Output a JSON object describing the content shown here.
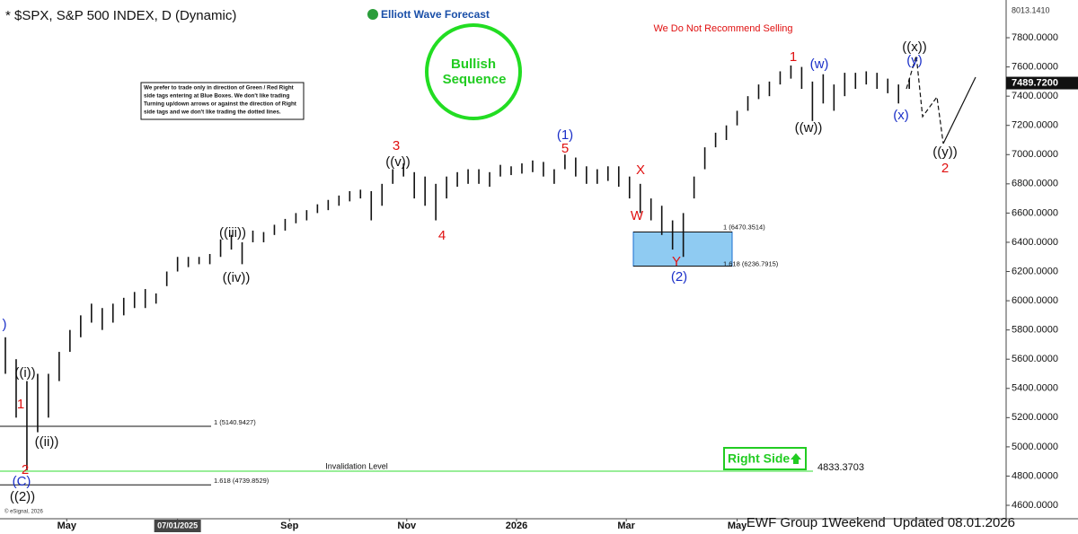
{
  "chart_data": {
    "type": "price-bars",
    "title": "* $SPX, S&P 500 INDEX, D (Dynamic)",
    "brand": "Elliott Wave Forecast",
    "warning": "We Do Not Recommend Selling",
    "sequence_badge": [
      "Bullish",
      "Sequence"
    ],
    "note_lines": [
      "We prefer to trade only in direction of Green / Red Right",
      "side tags entering at Blue Boxes. We don't like trading",
      "Turning up/down arrows or against the direction of Right",
      "side tags and we don't like trading the dotted lines."
    ],
    "right_side": "Right Side",
    "footer": "EWF Group 1Weekend  Updated 08.01.2026",
    "copyright": "© eSignal, 2026",
    "top_price_label": "8013.1410",
    "bar_color": "#111111",
    "high": [
      5750,
      5600,
      5450,
      5500,
      5500,
      5650,
      5800,
      5900,
      5980,
      5950,
      5980,
      6020,
      6060,
      6080,
      6050,
      6200,
      6300,
      6300,
      6300,
      6320,
      6420,
      6450,
      6400,
      6480,
      6470,
      6520,
      6560,
      6600,
      6620,
      6660,
      6690,
      6720,
      6750,
      6760,
      6750,
      6800,
      6900,
      6940,
      6880,
      6850,
      6800,
      6850,
      6880,
      6900,
      6900,
      6880,
      6930,
      6920,
      6940,
      6960,
      6950,
      6900,
      7000,
      6980,
      6920,
      6900,
      6920,
      6920,
      6850,
      6800,
      6700,
      6650,
      6550,
      6600,
      6850,
      7050,
      7150,
      7200,
      7300,
      7400,
      7480,
      7500,
      7570,
      7610,
      7600,
      7500,
      7550,
      7480,
      7560,
      7560,
      7570,
      7560,
      7520,
      7480,
      7520
    ],
    "low": [
      5500,
      5200,
      4840,
      5100,
      5200,
      5450,
      5650,
      5750,
      5850,
      5800,
      5850,
      5900,
      5950,
      5950,
      5980,
      6100,
      6200,
      6230,
      6250,
      6250,
      6300,
      6350,
      6250,
      6400,
      6400,
      6450,
      6480,
      6530,
      6550,
      6600,
      6620,
      6650,
      6680,
      6700,
      6550,
      6650,
      6800,
      6850,
      6700,
      6650,
      6550,
      6700,
      6780,
      6800,
      6800,
      6780,
      6850,
      6860,
      6870,
      6880,
      6850,
      6800,
      6900,
      6850,
      6800,
      6800,
      6820,
      6780,
      6700,
      6600,
      6550,
      6450,
      6350,
      6300,
      6700,
      6900,
      7050,
      7100,
      7200,
      7300,
      7380,
      7400,
      7480,
      7520,
      7450,
      7230,
      7350,
      7300,
      7400,
      7450,
      7480,
      7450,
      7420,
      7350,
      7450
    ],
    "xlim": [
      -0.5,
      93
    ],
    "xticks": [
      {
        "value": 5.7,
        "label": "May"
      },
      {
        "value": 16,
        "label": "07/01/2025"
      },
      {
        "value": 26.4,
        "label": "Sep"
      },
      {
        "value": 37.3,
        "label": "Nov"
      },
      {
        "value": 47.5,
        "label": "2026"
      },
      {
        "value": 57.7,
        "label": "Mar"
      },
      {
        "value": 68,
        "label": "May"
      }
    ],
    "ylim": [
      4508,
      8009
    ],
    "yticks": [
      {
        "value": 4600,
        "label": "4600.0000"
      },
      {
        "value": 4800,
        "label": "4800.0000"
      },
      {
        "value": 5000,
        "label": "5000.0000"
      },
      {
        "value": 5200,
        "label": "5200.0000"
      },
      {
        "value": 5400,
        "label": "5400.0000"
      },
      {
        "value": 5600,
        "label": "5600.0000"
      },
      {
        "value": 5800,
        "label": "5800.0000"
      },
      {
        "value": 6000,
        "label": "6000.0000"
      },
      {
        "value": 6200,
        "label": "6200.0000"
      },
      {
        "value": 6400,
        "label": "6400.0000"
      },
      {
        "value": 6600,
        "label": "6600.0000"
      },
      {
        "value": 6800,
        "label": "6800.0000"
      },
      {
        "value": 7000,
        "label": "7000.0000"
      },
      {
        "value": 7200,
        "label": "7200.0000"
      },
      {
        "value": 7400,
        "label": "7400.0000"
      },
      {
        "value": 7600,
        "label": "7600.0000"
      },
      {
        "value": 7800,
        "label": "7800.0000"
      }
    ],
    "last_price": {
      "value": 7489.72,
      "label": "7489.7200"
    },
    "fib_levels": [
      {
        "value": 5140.9427,
        "label": "1 (5140.9427)"
      },
      {
        "value": 4739.8529,
        "label": "1.618 (4739.8529)"
      }
    ],
    "blue_box": {
      "top": {
        "value": 6470.3514,
        "label": "1 (6470.3514)"
      },
      "bottom": {
        "value": 6236.7915,
        "label": "1.618 (6236.7915)"
      }
    },
    "invalidation": {
      "name": "Invalidation Level",
      "value": 4833.3703,
      "label": "4833.3703"
    },
    "wave_labels": [
      ")",
      "((i))",
      "1",
      "((ii))",
      "2",
      "(C)",
      "((2))",
      "((iii))",
      "((iv))",
      "((v))",
      "3",
      "4",
      "(1)",
      "5",
      "X",
      "W",
      "Y",
      "(2)",
      "1",
      "(w)",
      "((w))",
      "((x))",
      "(y)",
      "(x)",
      "((y))",
      "2"
    ]
  }
}
